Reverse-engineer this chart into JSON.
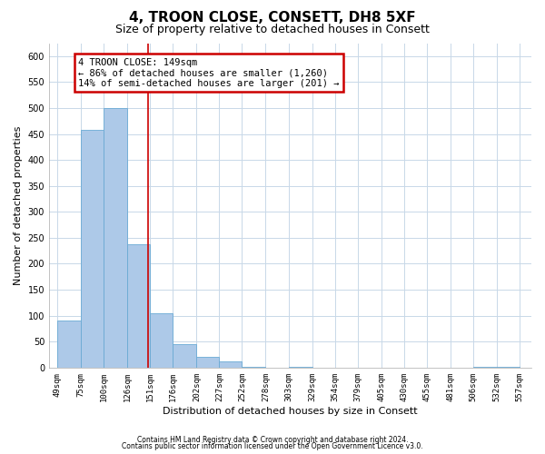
{
  "title": "4, TROON CLOSE, CONSETT, DH8 5XF",
  "subtitle": "Size of property relative to detached houses in Consett",
  "xlabel": "Distribution of detached houses by size in Consett",
  "ylabel": "Number of detached properties",
  "bar_left_edges": [
    49,
    75,
    100,
    126,
    151,
    176,
    202,
    227,
    252,
    278,
    303,
    329,
    354,
    379,
    405,
    430,
    455,
    481,
    506,
    532
  ],
  "bar_widths": [
    26,
    25,
    26,
    25,
    25,
    26,
    25,
    25,
    26,
    25,
    26,
    25,
    25,
    26,
    25,
    25,
    26,
    25,
    26,
    25
  ],
  "bar_heights": [
    90,
    458,
    500,
    237,
    105,
    45,
    20,
    12,
    1,
    0,
    1,
    0,
    0,
    0,
    0,
    0,
    0,
    0,
    1,
    1
  ],
  "bar_color": "#adc9e8",
  "bar_edge_color": "#6aaad4",
  "tick_labels": [
    "49sqm",
    "75sqm",
    "100sqm",
    "126sqm",
    "151sqm",
    "176sqm",
    "202sqm",
    "227sqm",
    "252sqm",
    "278sqm",
    "303sqm",
    "329sqm",
    "354sqm",
    "379sqm",
    "405sqm",
    "430sqm",
    "455sqm",
    "481sqm",
    "506sqm",
    "532sqm",
    "557sqm"
  ],
  "tick_positions": [
    49,
    75,
    100,
    126,
    151,
    176,
    202,
    227,
    252,
    278,
    303,
    329,
    354,
    379,
    405,
    430,
    455,
    481,
    506,
    532,
    557
  ],
  "ylim": [
    0,
    625
  ],
  "xlim": [
    40,
    570
  ],
  "yticks": [
    0,
    50,
    100,
    150,
    200,
    250,
    300,
    350,
    400,
    450,
    500,
    550,
    600
  ],
  "property_line_x": 149,
  "property_line_color": "#cc0000",
  "annotation_line1": "4 TROON CLOSE: 149sqm",
  "annotation_line2": "← 86% of detached houses are smaller (1,260)",
  "annotation_line3": "14% of semi-detached houses are larger (201) →",
  "annotation_box_color": "#cc0000",
  "footnote1": "Contains HM Land Registry data © Crown copyright and database right 2024.",
  "footnote2": "Contains public sector information licensed under the Open Government Licence v3.0.",
  "background_color": "#ffffff",
  "grid_color": "#c8d8e8",
  "title_fontsize": 11,
  "subtitle_fontsize": 9,
  "tick_fontsize": 6.5,
  "ylabel_fontsize": 8,
  "xlabel_fontsize": 8,
  "annot_fontsize": 7.5,
  "footnote_fontsize": 5.5
}
